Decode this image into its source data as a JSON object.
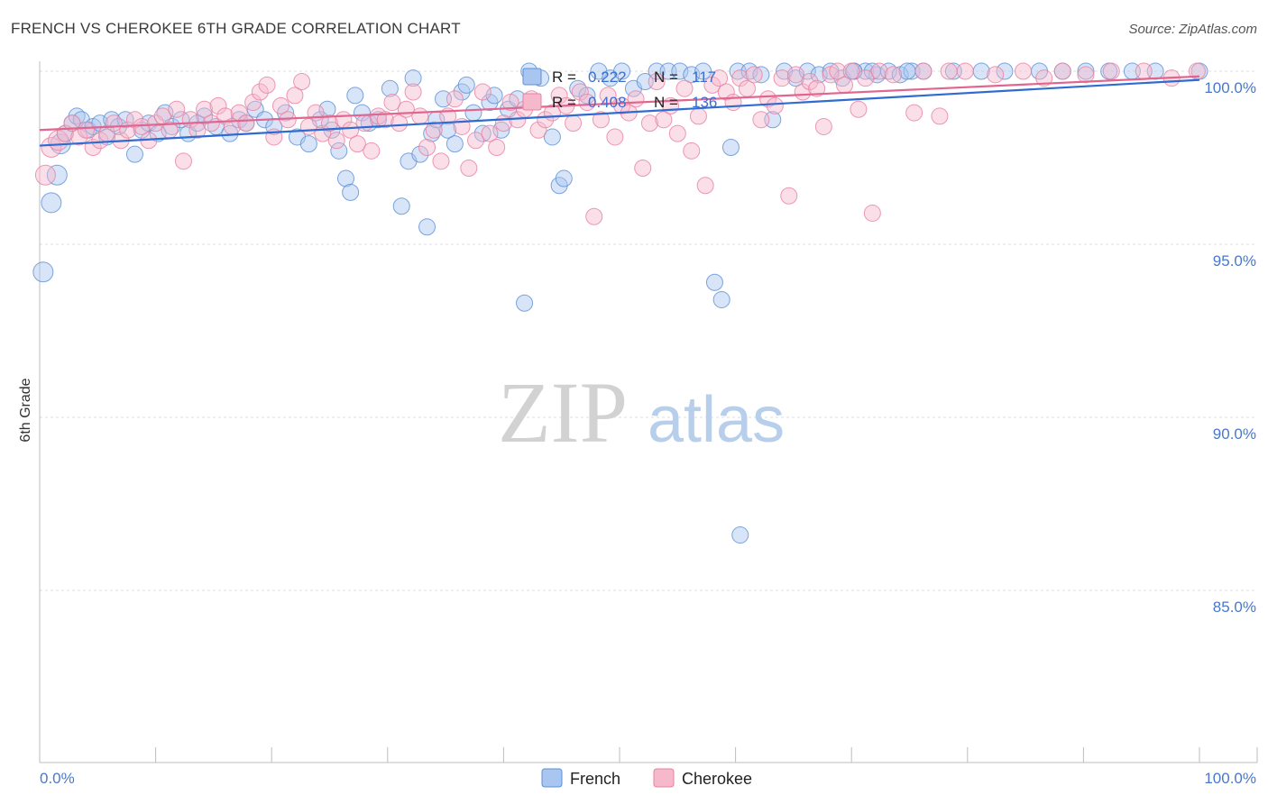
{
  "header": {
    "title": "FRENCH VS CHEROKEE 6TH GRADE CORRELATION CHART",
    "source": "Source: ZipAtlas.com"
  },
  "watermark": {
    "zip": "ZIP",
    "atlas": "atlas"
  },
  "stats": {
    "french": {
      "r_label": "R =",
      "r_value": "0.222",
      "n_label": "N =",
      "n_value": "117"
    },
    "cherokee": {
      "r_label": "R =",
      "r_value": "0.408",
      "n_label": "N =",
      "n_value": "136"
    }
  },
  "colors": {
    "french_fill": "#a9c6f0",
    "french_stroke": "#5b8fd6",
    "french_line": "#2f6bd0",
    "cherokee_fill": "#f6b8cb",
    "cherokee_stroke": "#e87fa0",
    "cherokee_line": "#e0658f",
    "tick_text": "#4a78c9",
    "grid": "#dcdcdc"
  },
  "chart_data": {
    "type": "scatter",
    "title": "FRENCH VS CHEROKEE 6TH GRADE CORRELATION CHART",
    "xlabel": "",
    "ylabel": "6th Grade",
    "xlim": [
      0,
      100
    ],
    "ylim": [
      80.5,
      100.7
    ],
    "x_tick_labels": [
      {
        "value": 0,
        "label": "0.0%"
      },
      {
        "value": 100,
        "label": "100.0%"
      }
    ],
    "y_tick_labels": [
      {
        "value": 100,
        "label": "100.0%"
      },
      {
        "value": 95,
        "label": "95.0%"
      },
      {
        "value": 90,
        "label": "90.0%"
      },
      {
        "value": 85,
        "label": "85.0%"
      }
    ],
    "legend": [
      "French",
      "Cherokee"
    ],
    "series": [
      {
        "name": "French",
        "r": 0.222,
        "n": 117,
        "trend": {
          "x": [
            0,
            100
          ],
          "y": [
            97.85,
            99.75
          ]
        },
        "points": [
          [
            0.3,
            94.2
          ],
          [
            1,
            96.2
          ],
          [
            1.5,
            97
          ],
          [
            1.8,
            97.9
          ],
          [
            2.2,
            98.2
          ],
          [
            2.8,
            98.5
          ],
          [
            3.2,
            98.7
          ],
          [
            3.6,
            98.6
          ],
          [
            4.2,
            98.3
          ],
          [
            4.6,
            98.4
          ],
          [
            5.2,
            98.5
          ],
          [
            5.8,
            98.1
          ],
          [
            6.2,
            98.6
          ],
          [
            6.8,
            98.4
          ],
          [
            7.4,
            98.6
          ],
          [
            8.2,
            97.6
          ],
          [
            8.8,
            98.3
          ],
          [
            9.4,
            98.5
          ],
          [
            10.2,
            98.2
          ],
          [
            10.8,
            98.8
          ],
          [
            11.4,
            98.4
          ],
          [
            12.2,
            98.6
          ],
          [
            12.8,
            98.2
          ],
          [
            13.6,
            98.5
          ],
          [
            14.2,
            98.7
          ],
          [
            15.2,
            98.4
          ],
          [
            16.4,
            98.2
          ],
          [
            17.2,
            98.6
          ],
          [
            17.8,
            98.5
          ],
          [
            18.6,
            98.9
          ],
          [
            19.4,
            98.6
          ],
          [
            20.2,
            98.4
          ],
          [
            21.2,
            98.8
          ],
          [
            22.2,
            98.1
          ],
          [
            23.2,
            97.9
          ],
          [
            24.2,
            98.6
          ],
          [
            24.8,
            98.9
          ],
          [
            25.2,
            98.3
          ],
          [
            25.8,
            97.7
          ],
          [
            26.4,
            96.9
          ],
          [
            26.8,
            96.5
          ],
          [
            27.2,
            99.3
          ],
          [
            27.8,
            98.8
          ],
          [
            28.4,
            98.5
          ],
          [
            29.2,
            98.6
          ],
          [
            30.2,
            99.5
          ],
          [
            31.2,
            96.1
          ],
          [
            31.8,
            97.4
          ],
          [
            32.2,
            99.8
          ],
          [
            32.8,
            97.6
          ],
          [
            33.4,
            95.5
          ],
          [
            33.8,
            98.2
          ],
          [
            34.2,
            98.6
          ],
          [
            34.8,
            99.2
          ],
          [
            35.2,
            98.3
          ],
          [
            35.8,
            97.9
          ],
          [
            36.4,
            99.4
          ],
          [
            36.8,
            99.6
          ],
          [
            37.4,
            98.8
          ],
          [
            38.2,
            98.2
          ],
          [
            38.8,
            99.1
          ],
          [
            39.2,
            99.3
          ],
          [
            39.8,
            98.3
          ],
          [
            40.4,
            98.9
          ],
          [
            41.2,
            99.2
          ],
          [
            41.8,
            93.3
          ],
          [
            42.2,
            100
          ],
          [
            43.2,
            99.8
          ],
          [
            44.2,
            98.1
          ],
          [
            44.8,
            96.7
          ],
          [
            45.2,
            96.9
          ],
          [
            46.4,
            99.5
          ],
          [
            47.2,
            99.3
          ],
          [
            48.2,
            100
          ],
          [
            49.2,
            99.8
          ],
          [
            50.2,
            100
          ],
          [
            51.2,
            99.5
          ],
          [
            52.2,
            99.7
          ],
          [
            53.2,
            100
          ],
          [
            54.2,
            100
          ],
          [
            55.2,
            100
          ],
          [
            56.2,
            99.9
          ],
          [
            57.2,
            100
          ],
          [
            58.2,
            93.9
          ],
          [
            58.8,
            93.4
          ],
          [
            59.6,
            97.8
          ],
          [
            60.2,
            100
          ],
          [
            61.2,
            100
          ],
          [
            62.2,
            99.9
          ],
          [
            63.2,
            98.6
          ],
          [
            64.2,
            100
          ],
          [
            65.2,
            99.8
          ],
          [
            66.2,
            100
          ],
          [
            67.2,
            99.9
          ],
          [
            68.2,
            100
          ],
          [
            69.2,
            99.8
          ],
          [
            70.2,
            100
          ],
          [
            71.2,
            100
          ],
          [
            72.2,
            99.9
          ],
          [
            73.2,
            100
          ],
          [
            74.2,
            99.9
          ],
          [
            75.2,
            100
          ],
          [
            76.2,
            100
          ],
          [
            60.4,
            86.6
          ],
          [
            70.2,
            100
          ],
          [
            71.8,
            100
          ],
          [
            74.8,
            100
          ],
          [
            78.8,
            100
          ],
          [
            81.2,
            100
          ],
          [
            83.2,
            100
          ],
          [
            86.2,
            100
          ],
          [
            88.2,
            100
          ],
          [
            90.2,
            100
          ],
          [
            92.2,
            100
          ],
          [
            94.2,
            100
          ],
          [
            96.2,
            100
          ],
          [
            100,
            100
          ]
        ]
      },
      {
        "name": "Cherokee",
        "r": 0.408,
        "n": 136,
        "trend": {
          "x": [
            0,
            100
          ],
          "y": [
            98.3,
            99.85
          ]
        },
        "points": [
          [
            0.5,
            97.0
          ],
          [
            1,
            97.8
          ],
          [
            1.6,
            98.0
          ],
          [
            2.2,
            98.2
          ],
          [
            2.8,
            98.5
          ],
          [
            3.4,
            98.1
          ],
          [
            4.0,
            98.3
          ],
          [
            4.6,
            97.8
          ],
          [
            5.2,
            98.0
          ],
          [
            5.8,
            98.2
          ],
          [
            6.4,
            98.5
          ],
          [
            7.0,
            98.0
          ],
          [
            7.6,
            98.3
          ],
          [
            8.2,
            98.6
          ],
          [
            8.8,
            98.4
          ],
          [
            9.4,
            98.0
          ],
          [
            10.0,
            98.5
          ],
          [
            10.6,
            98.7
          ],
          [
            11.2,
            98.3
          ],
          [
            11.8,
            98.9
          ],
          [
            12.4,
            97.4
          ],
          [
            13.0,
            98.6
          ],
          [
            13.6,
            98.3
          ],
          [
            14.2,
            98.9
          ],
          [
            14.8,
            98.5
          ],
          [
            15.4,
            99.0
          ],
          [
            16.0,
            98.7
          ],
          [
            16.6,
            98.4
          ],
          [
            17.2,
            98.8
          ],
          [
            17.8,
            98.5
          ],
          [
            18.4,
            99.1
          ],
          [
            19.0,
            99.4
          ],
          [
            19.6,
            99.6
          ],
          [
            20.2,
            98.1
          ],
          [
            20.8,
            99.0
          ],
          [
            21.4,
            98.6
          ],
          [
            22.0,
            99.3
          ],
          [
            22.6,
            99.7
          ],
          [
            23.2,
            98.4
          ],
          [
            23.8,
            98.8
          ],
          [
            24.4,
            98.2
          ],
          [
            25.0,
            98.5
          ],
          [
            25.6,
            98.0
          ],
          [
            26.2,
            98.6
          ],
          [
            26.8,
            98.3
          ],
          [
            27.4,
            97.9
          ],
          [
            28.0,
            98.5
          ],
          [
            28.6,
            97.7
          ],
          [
            29.2,
            98.7
          ],
          [
            29.8,
            98.6
          ],
          [
            30.4,
            99.1
          ],
          [
            31.0,
            98.5
          ],
          [
            31.6,
            98.9
          ],
          [
            32.2,
            99.4
          ],
          [
            32.8,
            98.7
          ],
          [
            33.4,
            97.8
          ],
          [
            34.0,
            98.3
          ],
          [
            34.6,
            97.4
          ],
          [
            35.2,
            98.7
          ],
          [
            35.8,
            99.2
          ],
          [
            36.4,
            98.4
          ],
          [
            37.0,
            97.2
          ],
          [
            37.6,
            98.0
          ],
          [
            38.2,
            99.4
          ],
          [
            38.8,
            98.2
          ],
          [
            39.4,
            97.8
          ],
          [
            40.0,
            98.5
          ],
          [
            40.6,
            99.1
          ],
          [
            41.2,
            98.6
          ],
          [
            41.8,
            98.9
          ],
          [
            42.4,
            99.2
          ],
          [
            43.0,
            98.3
          ],
          [
            43.6,
            98.6
          ],
          [
            44.2,
            98.8
          ],
          [
            44.8,
            99.3
          ],
          [
            45.4,
            99.0
          ],
          [
            46.0,
            98.5
          ],
          [
            46.6,
            99.4
          ],
          [
            47.2,
            99.1
          ],
          [
            47.8,
            95.8
          ],
          [
            48.4,
            98.6
          ],
          [
            49.0,
            99.3
          ],
          [
            49.6,
            98.1
          ],
          [
            50.2,
            99.0
          ],
          [
            50.8,
            98.8
          ],
          [
            51.4,
            99.2
          ],
          [
            52.0,
            97.2
          ],
          [
            52.6,
            98.5
          ],
          [
            53.2,
            99.7
          ],
          [
            53.8,
            98.6
          ],
          [
            54.4,
            99.0
          ],
          [
            55.0,
            98.2
          ],
          [
            55.6,
            99.5
          ],
          [
            56.2,
            97.7
          ],
          [
            56.8,
            98.7
          ],
          [
            57.4,
            96.7
          ],
          [
            58.0,
            99.6
          ],
          [
            58.6,
            99.8
          ],
          [
            59.2,
            99.4
          ],
          [
            59.8,
            99.1
          ],
          [
            60.4,
            99.8
          ],
          [
            61.0,
            99.5
          ],
          [
            61.6,
            99.9
          ],
          [
            62.2,
            98.6
          ],
          [
            62.8,
            99.2
          ],
          [
            63.4,
            99.0
          ],
          [
            64.0,
            99.8
          ],
          [
            64.6,
            96.4
          ],
          [
            65.2,
            99.9
          ],
          [
            65.8,
            99.4
          ],
          [
            66.4,
            99.7
          ],
          [
            67.0,
            99.5
          ],
          [
            67.6,
            98.4
          ],
          [
            68.2,
            99.9
          ],
          [
            68.8,
            100
          ],
          [
            69.4,
            99.6
          ],
          [
            70.0,
            100
          ],
          [
            70.6,
            98.9
          ],
          [
            71.2,
            99.8
          ],
          [
            71.8,
            95.9
          ],
          [
            72.4,
            100
          ],
          [
            73.6,
            99.9
          ],
          [
            75.4,
            98.8
          ],
          [
            76.2,
            100
          ],
          [
            77.6,
            98.7
          ],
          [
            78.4,
            100
          ],
          [
            79.8,
            100
          ],
          [
            82.4,
            99.9
          ],
          [
            84.8,
            100
          ],
          [
            86.6,
            99.8
          ],
          [
            88.2,
            100
          ],
          [
            90.2,
            99.9
          ],
          [
            92.4,
            100
          ],
          [
            95.2,
            100
          ],
          [
            97.6,
            99.8
          ],
          [
            99.8,
            100
          ]
        ]
      }
    ]
  }
}
